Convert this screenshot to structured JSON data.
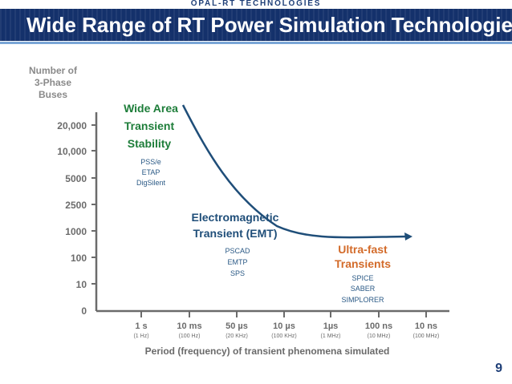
{
  "header": {
    "brand": "OPAL-RT TECHNOLOGIES",
    "title": "Wide Range of RT Power Simulation Technologies",
    "brand_color": "#1f3f78",
    "band_color": "#14316b"
  },
  "slide_number": "9",
  "chart_data": {
    "type": "line",
    "title": "Wide Range of RT Power Simulation Technologies",
    "ylabel_lines": [
      "Number of",
      "3-Phase",
      "Buses"
    ],
    "xlabel": "Period (frequency)  of transient  phenomena  simulated",
    "y_ticks": [
      "20,000",
      "10,000",
      "5000",
      "2500",
      "1000",
      "100",
      "10",
      "0"
    ],
    "x_ticks": [
      {
        "period": "1 s",
        "freq": "(1 Hz)"
      },
      {
        "period": "10 ms",
        "freq": "(100 Hz)"
      },
      {
        "period": "50 µs",
        "freq": "(20 KHz)"
      },
      {
        "period": "10 µs",
        "freq": "(100 KHz)"
      },
      {
        "period": "1µs",
        "freq": "(1 MHz)"
      },
      {
        "period": "100 ns",
        "freq": "(10 MHz)"
      },
      {
        "period": "10 ns",
        "freq": "(100 MHz)"
      }
    ],
    "series": [
      {
        "name": "Simulation capability",
        "points": [
          {
            "x": "1 s",
            "y": 20000
          },
          {
            "x": "10 ms",
            "y": 5000
          },
          {
            "x": "50 µs",
            "y": 1000
          },
          {
            "x": "10 µs",
            "y": 100
          },
          {
            "x": "100 ns",
            "y": 100
          }
        ]
      }
    ],
    "annotations": {
      "wide_area": {
        "lines": [
          "Wide Area",
          "Transient",
          "Stability"
        ],
        "tools": [
          "PSS/e",
          "ETAP",
          "DigSilent"
        ]
      },
      "emt": {
        "lines": [
          "Electromagnetic",
          "Transient (EMT)"
        ],
        "tools": [
          "PSCAD",
          "EMTP",
          "SPS"
        ]
      },
      "ultrafast": {
        "lines": [
          "Ultra-fast",
          "Transients"
        ],
        "tools": [
          "SPICE",
          "SABER",
          "SIMPLORER"
        ]
      }
    }
  },
  "colors": {
    "wide_area": "#1d7d39",
    "emt": "#1f4e79",
    "ultrafast": "#d36b2a",
    "curve": "#1f4e79"
  }
}
